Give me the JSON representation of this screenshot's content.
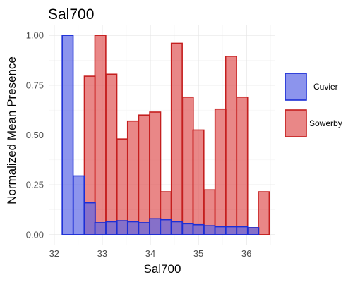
{
  "chart_data": {
    "type": "bar",
    "title": "Sal700",
    "xlabel": "Sal700",
    "ylabel": "Normalized Mean Presence",
    "xlim": [
      31.9,
      36.6
    ],
    "ylim": [
      -0.05,
      1.05
    ],
    "x_ticks": [
      32,
      33,
      34,
      35,
      36
    ],
    "y_ticks": [
      0.0,
      0.25,
      0.5,
      0.75,
      1.0
    ],
    "x_tick_labels": [
      "32",
      "33",
      "34",
      "35",
      "36"
    ],
    "y_tick_labels": [
      "0.00",
      "0.25",
      "0.50",
      "0.75",
      "1.00"
    ],
    "grid": true,
    "legend_position": "right",
    "bin_width": 0.2266,
    "series": [
      {
        "name": "Cuvier",
        "fill": "#5b67e6",
        "stroke": "#1c2ed6",
        "x": [
          32.28,
          32.51,
          32.74,
          32.96,
          33.19,
          33.42,
          33.64,
          33.87,
          34.1,
          34.32,
          34.55,
          34.78,
          35.0,
          35.23,
          35.46,
          35.68,
          35.91,
          36.14
        ],
        "values": [
          1.0,
          0.295,
          0.16,
          0.06,
          0.065,
          0.07,
          0.065,
          0.06,
          0.08,
          0.075,
          0.065,
          0.055,
          0.05,
          0.045,
          0.04,
          0.04,
          0.04,
          0.035
        ]
      },
      {
        "name": "Sowerby",
        "fill": "#e05454",
        "stroke": "#c41e1e",
        "x": [
          32.74,
          32.96,
          33.19,
          33.42,
          33.64,
          33.87,
          34.1,
          34.32,
          34.55,
          34.78,
          35.0,
          35.23,
          35.46,
          35.68,
          35.91,
          36.14,
          36.36
        ],
        "values": [
          0.795,
          1.0,
          0.805,
          0.48,
          0.57,
          0.6,
          0.615,
          0.215,
          0.96,
          0.69,
          0.525,
          0.225,
          0.63,
          0.895,
          0.69,
          0.035,
          0.215
        ]
      }
    ]
  }
}
